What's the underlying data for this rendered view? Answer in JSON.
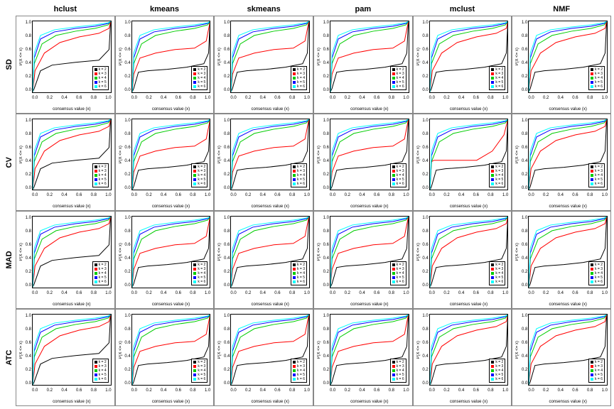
{
  "columns": [
    "hclust",
    "kmeans",
    "skmeans",
    "pam",
    "mclust",
    "NMF"
  ],
  "rows": [
    "SD",
    "CV",
    "MAD",
    "ATC"
  ],
  "xlabel": "consensus value (x)",
  "ylabel": "P(X <= x)",
  "xlim": [
    0,
    1
  ],
  "ylim": [
    0,
    1
  ],
  "xticks": [
    "0.0",
    "0.2",
    "0.4",
    "0.6",
    "0.8",
    "1.0"
  ],
  "yticks": [
    "0.0",
    "0.2",
    "0.4",
    "0.6",
    "0.8",
    "1.0"
  ],
  "legend_items": [
    {
      "label": "k = 2",
      "color": "#000000"
    },
    {
      "label": "k = 3",
      "color": "#ff0000"
    },
    {
      "label": "k = 4",
      "color": "#00cc00"
    },
    {
      "label": "k = 5",
      "color": "#0000ff"
    },
    {
      "label": "k = 6",
      "color": "#00ffff"
    }
  ],
  "background_color": "#ffffff",
  "grid_border_color": "#888888",
  "plot_border_color": "#000000",
  "title_fontsize": 11,
  "tick_fontsize": 6,
  "label_fontsize": 6,
  "line_width": 1,
  "curve_shapes": {
    "default_k2": [
      [
        0,
        0
      ],
      [
        0.02,
        0.05
      ],
      [
        0.1,
        0.3
      ],
      [
        0.25,
        0.38
      ],
      [
        0.55,
        0.42
      ],
      [
        0.85,
        0.45
      ],
      [
        0.98,
        0.6
      ],
      [
        1,
        1
      ]
    ],
    "default_k3": [
      [
        0,
        0
      ],
      [
        0.03,
        0.3
      ],
      [
        0.15,
        0.55
      ],
      [
        0.35,
        0.7
      ],
      [
        0.6,
        0.78
      ],
      [
        0.85,
        0.83
      ],
      [
        0.98,
        0.9
      ],
      [
        1,
        1
      ]
    ],
    "default_k4": [
      [
        0,
        0
      ],
      [
        0.02,
        0.4
      ],
      [
        0.12,
        0.68
      ],
      [
        0.3,
        0.8
      ],
      [
        0.55,
        0.86
      ],
      [
        0.8,
        0.9
      ],
      [
        0.97,
        0.95
      ],
      [
        1,
        1
      ]
    ],
    "default_k5": [
      [
        0,
        0
      ],
      [
        0.02,
        0.48
      ],
      [
        0.1,
        0.75
      ],
      [
        0.28,
        0.85
      ],
      [
        0.55,
        0.9
      ],
      [
        0.8,
        0.93
      ],
      [
        0.97,
        0.97
      ],
      [
        1,
        1
      ]
    ],
    "default_k6": [
      [
        0,
        0
      ],
      [
        0.02,
        0.55
      ],
      [
        0.1,
        0.8
      ],
      [
        0.28,
        0.88
      ],
      [
        0.55,
        0.92
      ],
      [
        0.8,
        0.95
      ],
      [
        0.97,
        0.98
      ],
      [
        1,
        1
      ]
    ],
    "stepish_k2": [
      [
        0,
        0
      ],
      [
        0.02,
        0.05
      ],
      [
        0.08,
        0.28
      ],
      [
        0.2,
        0.3
      ],
      [
        0.45,
        0.32
      ],
      [
        0.7,
        0.35
      ],
      [
        0.92,
        0.4
      ],
      [
        0.98,
        0.55
      ],
      [
        1,
        1
      ]
    ],
    "stepish_k3": [
      [
        0,
        0
      ],
      [
        0.02,
        0.25
      ],
      [
        0.1,
        0.48
      ],
      [
        0.3,
        0.55
      ],
      [
        0.55,
        0.6
      ],
      [
        0.8,
        0.62
      ],
      [
        0.95,
        0.72
      ],
      [
        1,
        1
      ]
    ],
    "flat_k3_mclust": [
      [
        0,
        0
      ],
      [
        0.02,
        0.4
      ],
      [
        0.05,
        0.42
      ],
      [
        0.6,
        0.42
      ],
      [
        0.8,
        0.55
      ],
      [
        0.95,
        0.78
      ],
      [
        1,
        1
      ]
    ]
  },
  "cells": {
    "SD_hclust": {
      "k2": "default_k2",
      "k3": "default_k3",
      "k4": "default_k4",
      "k5": "default_k5",
      "k6": "default_k6"
    },
    "SD_kmeans": {
      "k2": "stepish_k2",
      "k3": "stepish_k3",
      "k4": "default_k4",
      "k5": "default_k5",
      "k6": "default_k6"
    },
    "SD_skmeans": {
      "k2": "stepish_k2",
      "k3": "stepish_k3",
      "k4": "default_k4",
      "k5": "default_k5",
      "k6": "default_k6"
    },
    "SD_pam": {
      "k2": "stepish_k2",
      "k3": "stepish_k3",
      "k4": "default_k4",
      "k5": "default_k5",
      "k6": "default_k6"
    },
    "SD_mclust": {
      "k2": "stepish_k2",
      "k3": "default_k3",
      "k4": "default_k4",
      "k5": "default_k5",
      "k6": "default_k6"
    },
    "SD_NMF": {
      "k2": "stepish_k2",
      "k3": "default_k3",
      "k4": "default_k4",
      "k5": "default_k5",
      "k6": "default_k6"
    },
    "CV_hclust": {
      "k2": "default_k2",
      "k3": "default_k3",
      "k4": "default_k4",
      "k5": "default_k5",
      "k6": "default_k6"
    },
    "CV_kmeans": {
      "k2": "stepish_k2",
      "k3": "stepish_k3",
      "k4": "default_k4",
      "k5": "default_k5",
      "k6": "default_k6"
    },
    "CV_skmeans": {
      "k2": "stepish_k2",
      "k3": "stepish_k3",
      "k4": "default_k4",
      "k5": "default_k5",
      "k6": "default_k6"
    },
    "CV_pam": {
      "k2": "stepish_k2",
      "k3": "stepish_k3",
      "k4": "default_k4",
      "k5": "default_k5",
      "k6": "default_k6"
    },
    "CV_mclust": {
      "k2": "stepish_k2",
      "k3": "flat_k3_mclust",
      "k4": "default_k4",
      "k5": "default_k5",
      "k6": "default_k6"
    },
    "CV_NMF": {
      "k2": "stepish_k2",
      "k3": "default_k3",
      "k4": "default_k4",
      "k5": "default_k5",
      "k6": "default_k6"
    },
    "MAD_hclust": {
      "k2": "default_k2",
      "k3": "default_k3",
      "k4": "default_k4",
      "k5": "default_k5",
      "k6": "default_k6"
    },
    "MAD_kmeans": {
      "k2": "stepish_k2",
      "k3": "stepish_k3",
      "k4": "default_k4",
      "k5": "default_k5",
      "k6": "default_k6"
    },
    "MAD_skmeans": {
      "k2": "stepish_k2",
      "k3": "stepish_k3",
      "k4": "default_k4",
      "k5": "default_k5",
      "k6": "default_k6"
    },
    "MAD_pam": {
      "k2": "stepish_k2",
      "k3": "stepish_k3",
      "k4": "default_k4",
      "k5": "default_k5",
      "k6": "default_k6"
    },
    "MAD_mclust": {
      "k2": "stepish_k2",
      "k3": "default_k3",
      "k4": "default_k4",
      "k5": "default_k5",
      "k6": "default_k6"
    },
    "MAD_NMF": {
      "k2": "stepish_k2",
      "k3": "default_k3",
      "k4": "default_k4",
      "k5": "default_k5",
      "k6": "default_k6"
    },
    "ATC_hclust": {
      "k2": "default_k2",
      "k3": "default_k3",
      "k4": "default_k4",
      "k5": "default_k5",
      "k6": "default_k6"
    },
    "ATC_kmeans": {
      "k2": "stepish_k2",
      "k3": "stepish_k3",
      "k4": "default_k4",
      "k5": "default_k5",
      "k6": "default_k6"
    },
    "ATC_skmeans": {
      "k2": "stepish_k2",
      "k3": "stepish_k3",
      "k4": "default_k4",
      "k5": "default_k5",
      "k6": "default_k6"
    },
    "ATC_pam": {
      "k2": "stepish_k2",
      "k3": "stepish_k3",
      "k4": "default_k4",
      "k5": "default_k5",
      "k6": "default_k6"
    },
    "ATC_mclust": {
      "k2": "stepish_k2",
      "k3": "default_k3",
      "k4": "default_k4",
      "k5": "default_k5",
      "k6": "default_k6"
    },
    "ATC_NMF": {
      "k2": "stepish_k2",
      "k3": "default_k3",
      "k4": "default_k4",
      "k5": "default_k5",
      "k6": "default_k6"
    }
  }
}
